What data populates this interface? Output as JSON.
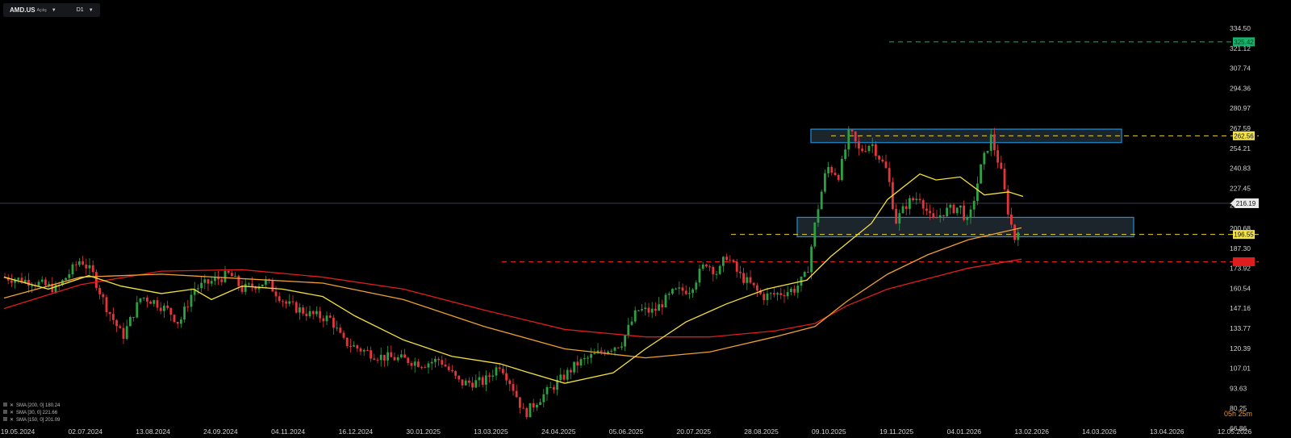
{
  "toolbar": {
    "symbol": "AMD.US",
    "symbol_sub": "Açılış",
    "timeframe": "D1"
  },
  "countdown": "05h 25m",
  "colors": {
    "up": "#2ea043",
    "down": "#e5353b",
    "sma200": "#e01d1d",
    "sma150": "#f0a030",
    "sma30": "#f5e13c",
    "zone": "#1e8fd6",
    "resistance": "#e8d02a",
    "target": "#12b56b"
  },
  "chart_data": {
    "type": "candlestick",
    "ylim": [
      66.86,
      334.5
    ],
    "y_ticks": [
      "334.50",
      "321.12",
      "307.74",
      "294.36",
      "280.97",
      "267.59",
      "254.21",
      "240.83",
      "227.45",
      "216.19",
      "200.68",
      "187.30",
      "173.92",
      "160.54",
      "147.16",
      "133.77",
      "120.39",
      "107.01",
      "93.63",
      "80.25",
      "66.86"
    ],
    "x_ticks": [
      "19.05.2024",
      "02.07.2024",
      "13.08.2024",
      "24.09.2024",
      "04.11.2024",
      "16.12.2024",
      "30.01.2025",
      "13.03.2025",
      "24.04.2025",
      "05.06.2025",
      "20.07.2025",
      "28.08.2025",
      "09.10.2025",
      "19.11.2025",
      "04.01.2026",
      "13.02.2026",
      "14.03.2026",
      "13.04.2026",
      "12.05.2026"
    ],
    "current_price": "216.19",
    "series": [
      {
        "name": "SMA [200, 0] 180.24",
        "color": "#e01d1d"
      },
      {
        "name": "SMA [30, 0] 221.66",
        "color": "#f5e13c"
      },
      {
        "name": "SMA [150, 0] 201.09",
        "color": "#f0a030"
      }
    ],
    "levels": [
      {
        "label": "325.42",
        "value": 325.42,
        "color": "#12b56b"
      },
      {
        "label": "262.56",
        "value": 262.56,
        "color": "#e8d02a"
      },
      {
        "label": "196.55",
        "value": 196.55,
        "color": "#e8d02a"
      },
      {
        "label": "",
        "value": 178.3,
        "color": "#e01d1d"
      }
    ],
    "zones": [
      {
        "from": 258,
        "to": 267
      },
      {
        "from": 195,
        "to": 208
      }
    ]
  }
}
